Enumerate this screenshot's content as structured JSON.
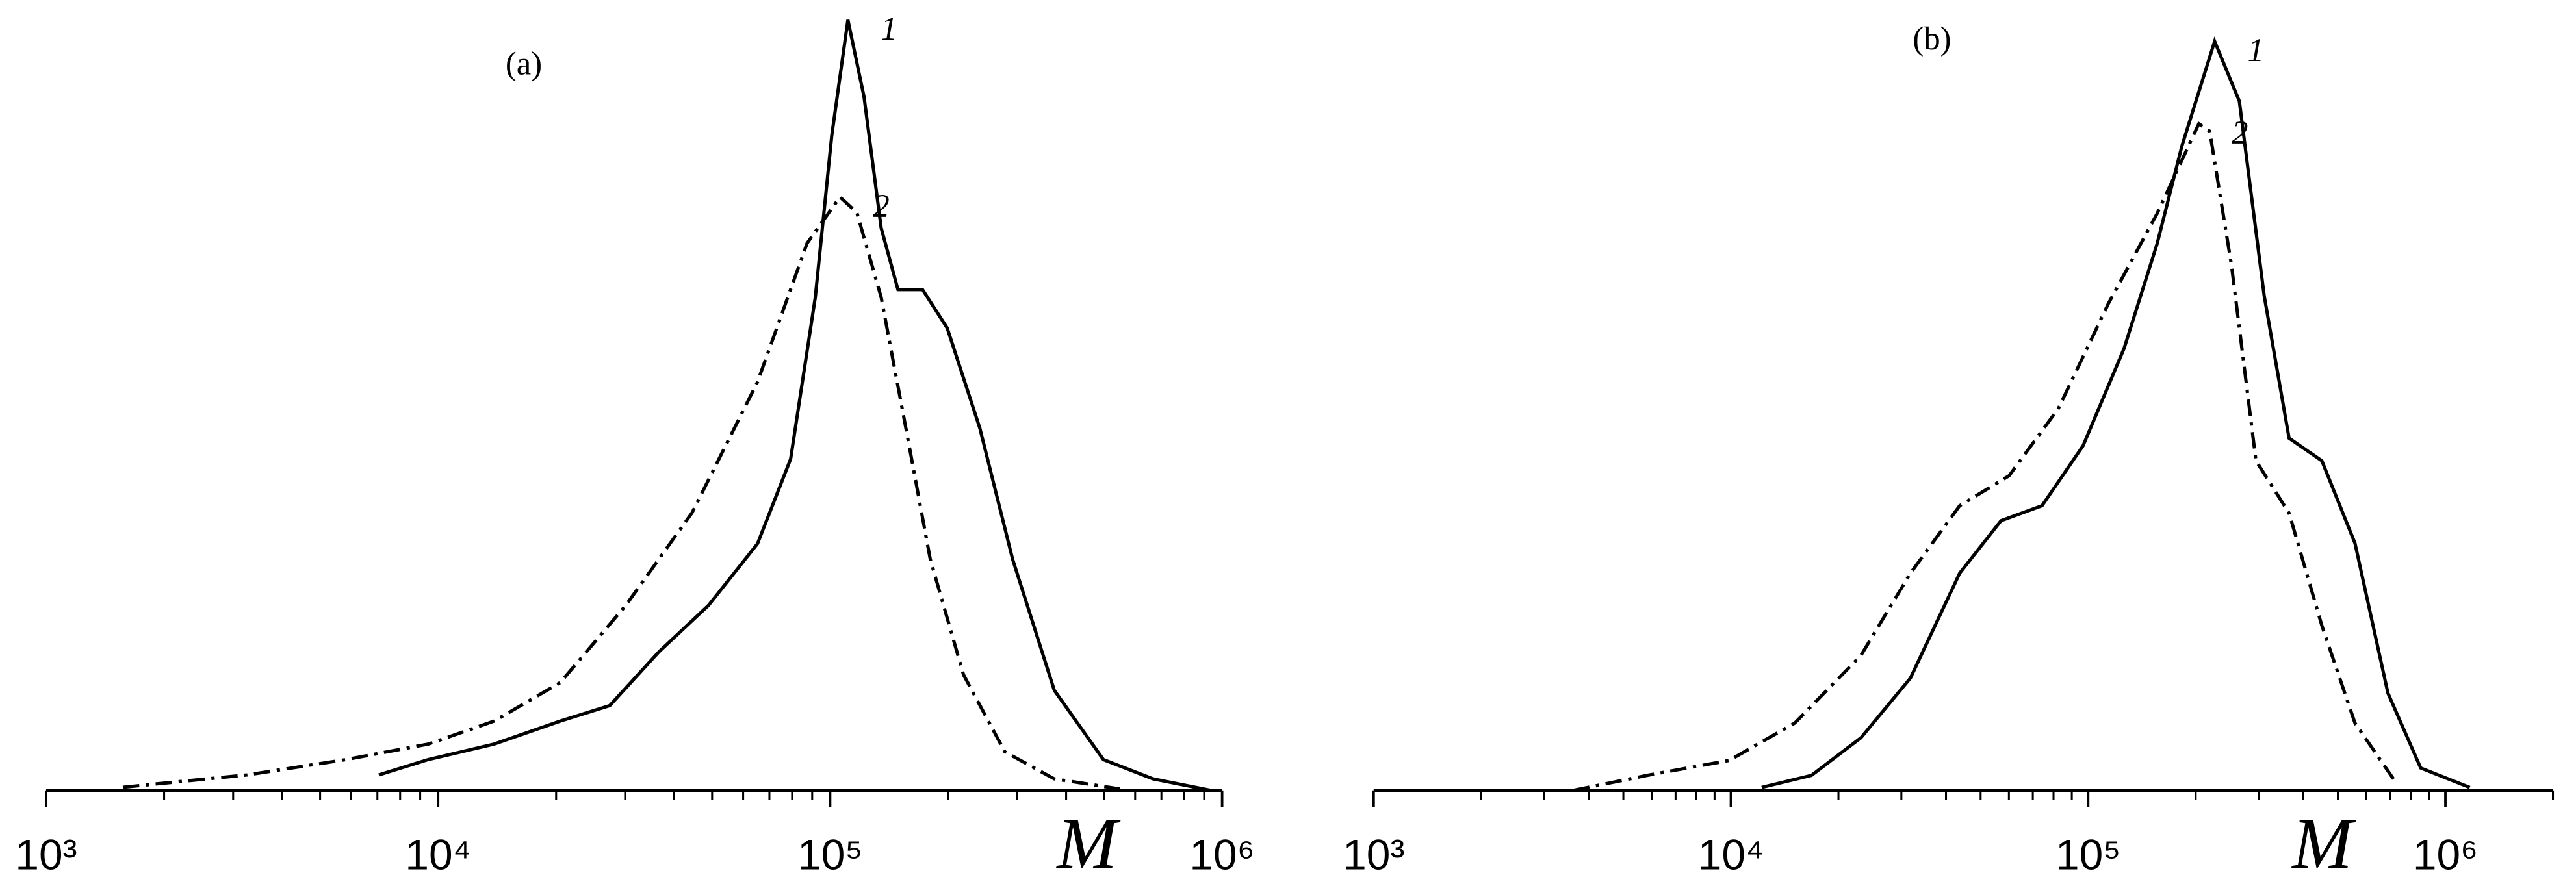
{
  "chart_data": [
    {
      "type": "line",
      "title": "(a)",
      "xlabel": "M",
      "xscale": "log",
      "xlim": [
        1000,
        1000000
      ],
      "ylim": [
        0,
        1
      ],
      "xticks": [
        {
          "value": 1000,
          "label": "10³"
        },
        {
          "value": 10000,
          "label": "10⁴"
        },
        {
          "value": 100000,
          "label": "10⁵"
        },
        {
          "value": 1000000,
          "label": "10⁶"
        }
      ],
      "xminorticks": [
        2000,
        3000,
        4000,
        5000,
        6000,
        7000,
        8000,
        9000,
        20000,
        30000,
        40000,
        50000,
        60000,
        70000,
        80000,
        90000,
        200000,
        300000,
        400000,
        500000,
        600000,
        700000,
        800000,
        900000
      ],
      "series": [
        {
          "name": "1",
          "color": "#000000",
          "linestyle": "solid",
          "x": [
            7060,
            9440,
            13900,
            20500,
            27400,
            36600,
            48900,
            65300,
            79300,
            91700,
            101000,
            111000,
            122000,
            135000,
            149000,
            172000,
            199000,
            241000,
            292000,
            373000,
            498000,
            666000,
            935000
          ],
          "values": [
            0.02,
            0.04,
            0.06,
            0.09,
            0.11,
            0.18,
            0.24,
            0.32,
            0.43,
            0.64,
            0.85,
            1.0,
            0.9,
            0.73,
            0.65,
            0.65,
            0.6,
            0.47,
            0.3,
            0.13,
            0.04,
            0.015,
            0
          ]
        },
        {
          "name": "2",
          "color": "#000000",
          "linestyle": "dash-dot",
          "x": [
            1570,
            3260,
            5820,
            9440,
            13900,
            20500,
            30100,
            44400,
            65300,
            87300,
            106000,
            117000,
            135000,
            156000,
            180000,
            219000,
            279000,
            373000,
            548000
          ],
          "values": [
            0.004,
            0.02,
            0.04,
            0.06,
            0.09,
            0.14,
            0.24,
            0.36,
            0.53,
            0.71,
            0.77,
            0.75,
            0.64,
            0.47,
            0.3,
            0.15,
            0.05,
            0.015,
            0.002
          ]
        }
      ]
    },
    {
      "type": "line",
      "title": "(b)",
      "xlabel": "M",
      "xscale": "log",
      "xlim": [
        1000,
        2000000
      ],
      "ylim": [
        0,
        1
      ],
      "xticks": [
        {
          "value": 1000,
          "label": "10³"
        },
        {
          "value": 10000,
          "label": "10⁴"
        },
        {
          "value": 100000,
          "label": "10⁵"
        },
        {
          "value": 1000000,
          "label": "10⁶"
        }
      ],
      "xminorticks": [
        2000,
        3000,
        4000,
        5000,
        6000,
        7000,
        8000,
        9000,
        20000,
        30000,
        40000,
        50000,
        60000,
        70000,
        80000,
        90000,
        200000,
        300000,
        400000,
        500000,
        600000,
        700000,
        800000,
        900000,
        2000000
      ],
      "series": [
        {
          "name": "1",
          "color": "#000000",
          "linestyle": "solid",
          "x": [
            12200,
            16800,
            23100,
            31800,
            43700,
            57000,
            74300,
            96800,
            126000,
            156000,
            183000,
            226000,
            265000,
            311000,
            365000,
            451000,
            558000,
            690000,
            853000,
            1170000
          ],
          "values": [
            0.004,
            0.02,
            0.07,
            0.15,
            0.29,
            0.36,
            0.38,
            0.46,
            0.59,
            0.73,
            0.86,
            1.0,
            0.92,
            0.66,
            0.47,
            0.44,
            0.33,
            0.13,
            0.03,
            0.004
          ]
        },
        {
          "name": "2",
          "color": "#000000",
          "linestyle": "dash-dot",
          "x": [
            3620,
            5820,
            9890,
            15100,
            23100,
            31800,
            43700,
            60100,
            82600,
            114000,
            156000,
            204000,
            219000,
            252000,
            295000,
            365000,
            451000,
            558000,
            728000
          ],
          "values": [
            0,
            0.02,
            0.04,
            0.09,
            0.18,
            0.29,
            0.38,
            0.42,
            0.51,
            0.65,
            0.77,
            0.89,
            0.88,
            0.7,
            0.44,
            0.37,
            0.22,
            0.09,
            0.01
          ]
        }
      ]
    }
  ]
}
